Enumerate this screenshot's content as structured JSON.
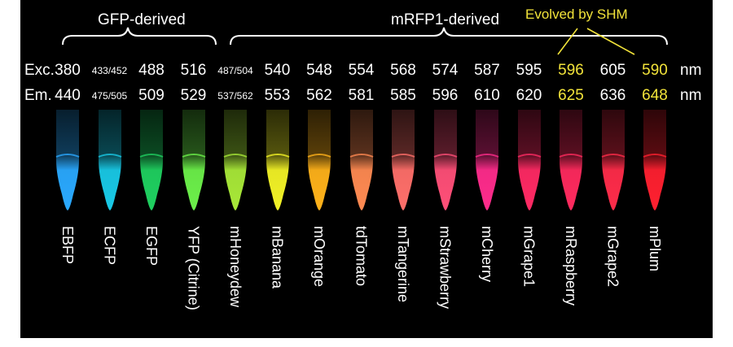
{
  "groups": {
    "gfp": "GFP-derived",
    "mrfp": "mRFP1-derived",
    "shm": "Evolved by SHM"
  },
  "rows": {
    "exc_label": "Exc.",
    "em_label": "Em.",
    "unit": "nm"
  },
  "proteins": [
    {
      "name": "EBFP",
      "exc": "380",
      "em": "440",
      "color": "#2aa9ff"
    },
    {
      "name": "ECFP",
      "exc": "433/452",
      "em": "475/505",
      "color": "#19c9e6"
    },
    {
      "name": "EGFP",
      "exc": "488",
      "em": "509",
      "color": "#1fd060"
    },
    {
      "name": "YFP (Citrine)",
      "exc": "516",
      "em": "529",
      "color": "#6cf04a"
    },
    {
      "name": "mHoneydew",
      "exc": "487/504",
      "em": "537/562",
      "color": "#a8e838"
    },
    {
      "name": "mBanana",
      "exc": "540",
      "em": "553",
      "color": "#f2f226"
    },
    {
      "name": "mOrange",
      "exc": "548",
      "em": "562",
      "color": "#ffb21a"
    },
    {
      "name": "tdTomato",
      "exc": "554",
      "em": "581",
      "color": "#ff8a52"
    },
    {
      "name": "mTangerine",
      "exc": "568",
      "em": "585",
      "color": "#ff6f6a"
    },
    {
      "name": "mStrawberry",
      "exc": "574",
      "em": "596",
      "color": "#ff4f78"
    },
    {
      "name": "mCherry",
      "exc": "587",
      "em": "610",
      "color": "#ff2c8c"
    },
    {
      "name": "mGrape1",
      "exc": "595",
      "em": "620",
      "color": "#ff2a64"
    },
    {
      "name": "mRaspberry",
      "exc": "596",
      "em": "625",
      "color": "#ff2a5e"
    },
    {
      "name": "mGrape2",
      "exc": "605",
      "em": "636",
      "color": "#ff2c4a"
    },
    {
      "name": "mPlum",
      "exc": "590",
      "em": "648",
      "color": "#ff2030"
    }
  ]
}
